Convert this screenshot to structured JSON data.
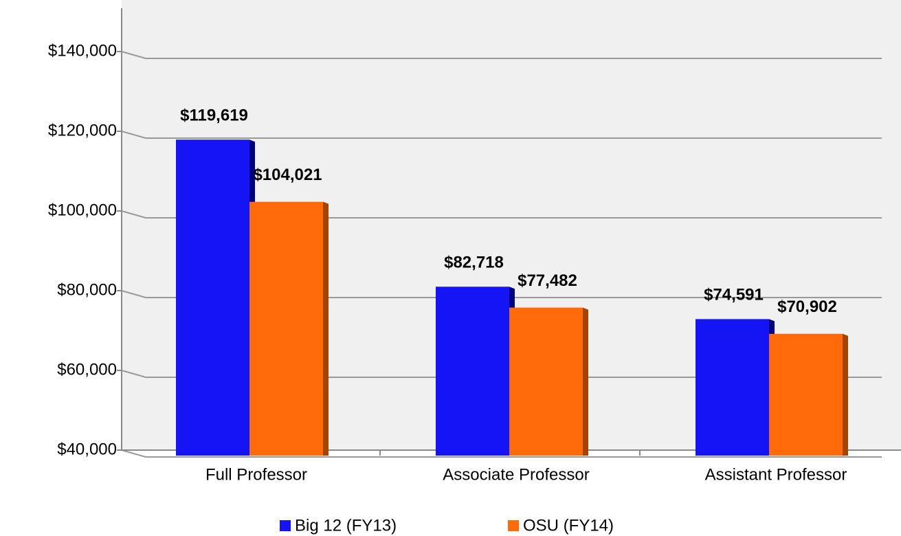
{
  "chart_data": {
    "type": "bar",
    "categories": [
      "Full Professor",
      "Associate Professor",
      "Assistant Professor"
    ],
    "series": [
      {
        "name": "Big 12 (FY13)",
        "color": "#1414f5",
        "values": [
          119619,
          82718,
          74591
        ],
        "value_labels": [
          "$119,619",
          "$82,718",
          "$74,591"
        ]
      },
      {
        "name": "OSU (FY14)",
        "color": "#ff6a0a",
        "values": [
          104021,
          77482,
          70902
        ],
        "value_labels": [
          "$104,021",
          "$77,482",
          "$70,902"
        ]
      }
    ],
    "ylim": [
      40000,
      150000
    ],
    "yticks": [
      {
        "value": 40000,
        "label": "$40,000"
      },
      {
        "value": 60000,
        "label": "$60,000"
      },
      {
        "value": 80000,
        "label": "$80,000"
      },
      {
        "value": 100000,
        "label": "$100,000"
      },
      {
        "value": 120000,
        "label": "$120,000"
      },
      {
        "value": 140000,
        "label": "$140,000"
      }
    ],
    "grid": true,
    "legend": "bottom"
  }
}
